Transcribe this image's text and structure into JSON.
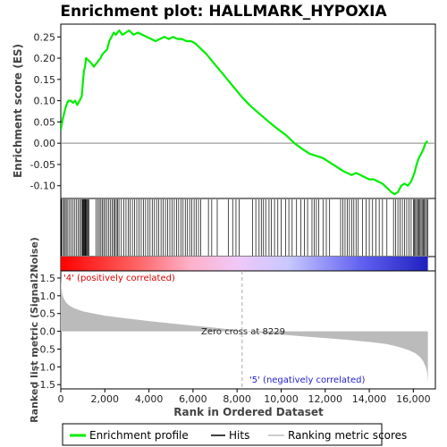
{
  "title": "Enrichment plot: HALLMARK_HYPOXIA",
  "colors": {
    "es_line": "#00ee00",
    "hit_line": "#000000",
    "metric_fill": "#bbbbbb",
    "pos_label": "#dd0000",
    "neg_label": "#2222cc"
  },
  "chart_data": [
    {
      "type": "line",
      "name": "enrichment-profile",
      "ylabel": "Enrichment score (ES)",
      "xlim": [
        0,
        17000
      ],
      "ylim": [
        -0.13,
        0.28
      ],
      "y_ticks": [
        -0.1,
        -0.05,
        0.0,
        0.05,
        0.1,
        0.15,
        0.2,
        0.25
      ],
      "y_tick_labels": [
        "-0.10",
        "-0.05",
        "0.00",
        "0.05",
        "0.10",
        "0.15",
        "0.20",
        "0.25"
      ],
      "x": [
        0,
        60,
        150,
        250,
        350,
        450,
        550,
        650,
        750,
        850,
        950,
        1000,
        1050,
        1100,
        1150,
        1250,
        1350,
        1500,
        1650,
        1800,
        1900,
        2000,
        2100,
        2200,
        2300,
        2400,
        2500,
        2650,
        2800,
        2950,
        3100,
        3300,
        3500,
        3700,
        3900,
        4100,
        4300,
        4500,
        4700,
        4900,
        5100,
        5300,
        5500,
        5700,
        5900,
        6100,
        6300,
        6600,
        7000,
        7400,
        7800,
        8229,
        8600,
        9000,
        9400,
        9800,
        10200,
        10600,
        11000,
        11300,
        11600,
        11900,
        12200,
        12500,
        12800,
        13000,
        13200,
        13400,
        13600,
        13800,
        14000,
        14200,
        14400,
        14600,
        14800,
        15000,
        15150,
        15300,
        15450,
        15600,
        15750,
        15900,
        16050,
        16150,
        16250,
        16350,
        16450,
        16550,
        16650
      ],
      "y": [
        0.03,
        0.05,
        0.07,
        0.09,
        0.1,
        0.1,
        0.095,
        0.1,
        0.09,
        0.1,
        0.11,
        0.14,
        0.17,
        0.18,
        0.2,
        0.195,
        0.19,
        0.18,
        0.19,
        0.2,
        0.21,
        0.215,
        0.22,
        0.24,
        0.25,
        0.26,
        0.255,
        0.265,
        0.255,
        0.26,
        0.265,
        0.255,
        0.26,
        0.255,
        0.25,
        0.245,
        0.24,
        0.245,
        0.25,
        0.245,
        0.25,
        0.245,
        0.245,
        0.24,
        0.24,
        0.235,
        0.225,
        0.21,
        0.185,
        0.16,
        0.135,
        0.108,
        0.088,
        0.07,
        0.052,
        0.035,
        0.02,
        0.0,
        -0.015,
        -0.025,
        -0.03,
        -0.035,
        -0.045,
        -0.055,
        -0.065,
        -0.07,
        -0.075,
        -0.07,
        -0.075,
        -0.08,
        -0.085,
        -0.085,
        -0.09,
        -0.095,
        -0.105,
        -0.115,
        -0.12,
        -0.115,
        -0.1,
        -0.095,
        -0.1,
        -0.09,
        -0.07,
        -0.05,
        -0.035,
        -0.025,
        -0.015,
        0.0,
        0.005
      ]
    },
    {
      "type": "hits",
      "name": "hits",
      "xlim": [
        0,
        17000
      ],
      "positions": [
        30,
        80,
        140,
        200,
        250,
        320,
        400,
        480,
        560,
        640,
        720,
        800,
        860,
        930,
        980,
        1010,
        1040,
        1070,
        1100,
        1130,
        1160,
        1190,
        1230,
        1270,
        1600,
        1680,
        1750,
        1820,
        1880,
        1950,
        2020,
        2100,
        2180,
        2260,
        2330,
        2400,
        2460,
        2520,
        2580,
        2640,
        2750,
        2860,
        2960,
        3060,
        3150,
        3250,
        3350,
        3450,
        3550,
        3650,
        3750,
        3850,
        3950,
        4050,
        4150,
        4250,
        4350,
        4450,
        4550,
        4650,
        4750,
        4850,
        4950,
        5050,
        5150,
        5250,
        5350,
        5450,
        5550,
        5650,
        5750,
        5850,
        5950,
        6050,
        6150,
        6250,
        6350,
        6700,
        6850,
        7100,
        7600,
        7800,
        7950,
        8100,
        8700,
        8850,
        9000,
        9100,
        9200,
        9300,
        9450,
        9550,
        9700,
        9850,
        10000,
        10200,
        10350,
        10500,
        10700,
        10900,
        11050,
        11200,
        11400,
        11500,
        11600,
        11700,
        11900,
        12050,
        12200,
        12700,
        12800,
        12900,
        13000,
        13100,
        13200,
        13300,
        13400,
        13500,
        13700,
        13850,
        14000,
        14150,
        14300,
        14450,
        14600,
        14800,
        15100,
        15200,
        15300,
        15400,
        15500,
        15600,
        15700,
        15800,
        15900,
        16000,
        16050,
        16100,
        16150,
        16200,
        16250,
        16300,
        16350,
        16400,
        16450,
        16500,
        16550,
        16600,
        16650
      ]
    },
    {
      "type": "area",
      "name": "ranked-list-metric",
      "xlabel": "Rank in Ordered Dataset",
      "ylabel": "Ranked list metric (Signal2Noise)",
      "xlim": [
        0,
        17000
      ],
      "ylim": [
        -1.62,
        1.7
      ],
      "x_ticks": [
        0,
        2000,
        4000,
        6000,
        8000,
        10000,
        12000,
        14000,
        16000
      ],
      "x_tick_labels": [
        "0",
        "2,000",
        "4,000",
        "6,000",
        "8,000",
        "10,000",
        "12,000",
        "14,000",
        "16,000"
      ],
      "y_ticks": [
        -1.5,
        -1.0,
        -0.5,
        0.0,
        0.5,
        1.0,
        1.5
      ],
      "y_tick_labels": [
        "-1.5",
        "-1.0",
        "-0.5",
        "0.0",
        "0.5",
        "1.0",
        "1.5"
      ],
      "x": [
        0,
        30,
        80,
        150,
        250,
        400,
        600,
        1000,
        1500,
        2000,
        3000,
        4000,
        5000,
        6000,
        7000,
        8000,
        8229,
        9000,
        10000,
        11000,
        12000,
        13000,
        14000,
        14800,
        15400,
        15800,
        16100,
        16300,
        16450,
        16560,
        16620,
        16650,
        16660
      ],
      "y": [
        1.55,
        1.2,
        1.0,
        0.9,
        0.8,
        0.72,
        0.65,
        0.56,
        0.5,
        0.44,
        0.36,
        0.29,
        0.22,
        0.16,
        0.1,
        0.03,
        0.0,
        -0.04,
        -0.09,
        -0.14,
        -0.19,
        -0.24,
        -0.3,
        -0.36,
        -0.45,
        -0.53,
        -0.62,
        -0.72,
        -0.84,
        -1.0,
        -1.15,
        -1.35,
        -1.5
      ],
      "zero_cross": 8229,
      "annotations": {
        "zero_cross": "Zero cross at 8229",
        "positive": "'4' (positively correlated)",
        "negative": "'5' (negatively correlated)"
      }
    }
  ],
  "legend": [
    {
      "label": "Enrichment profile",
      "color": "#00ee00"
    },
    {
      "label": "Hits",
      "color": "#000000"
    },
    {
      "label": "Ranking metric scores",
      "color": "#bbbbbb"
    }
  ]
}
